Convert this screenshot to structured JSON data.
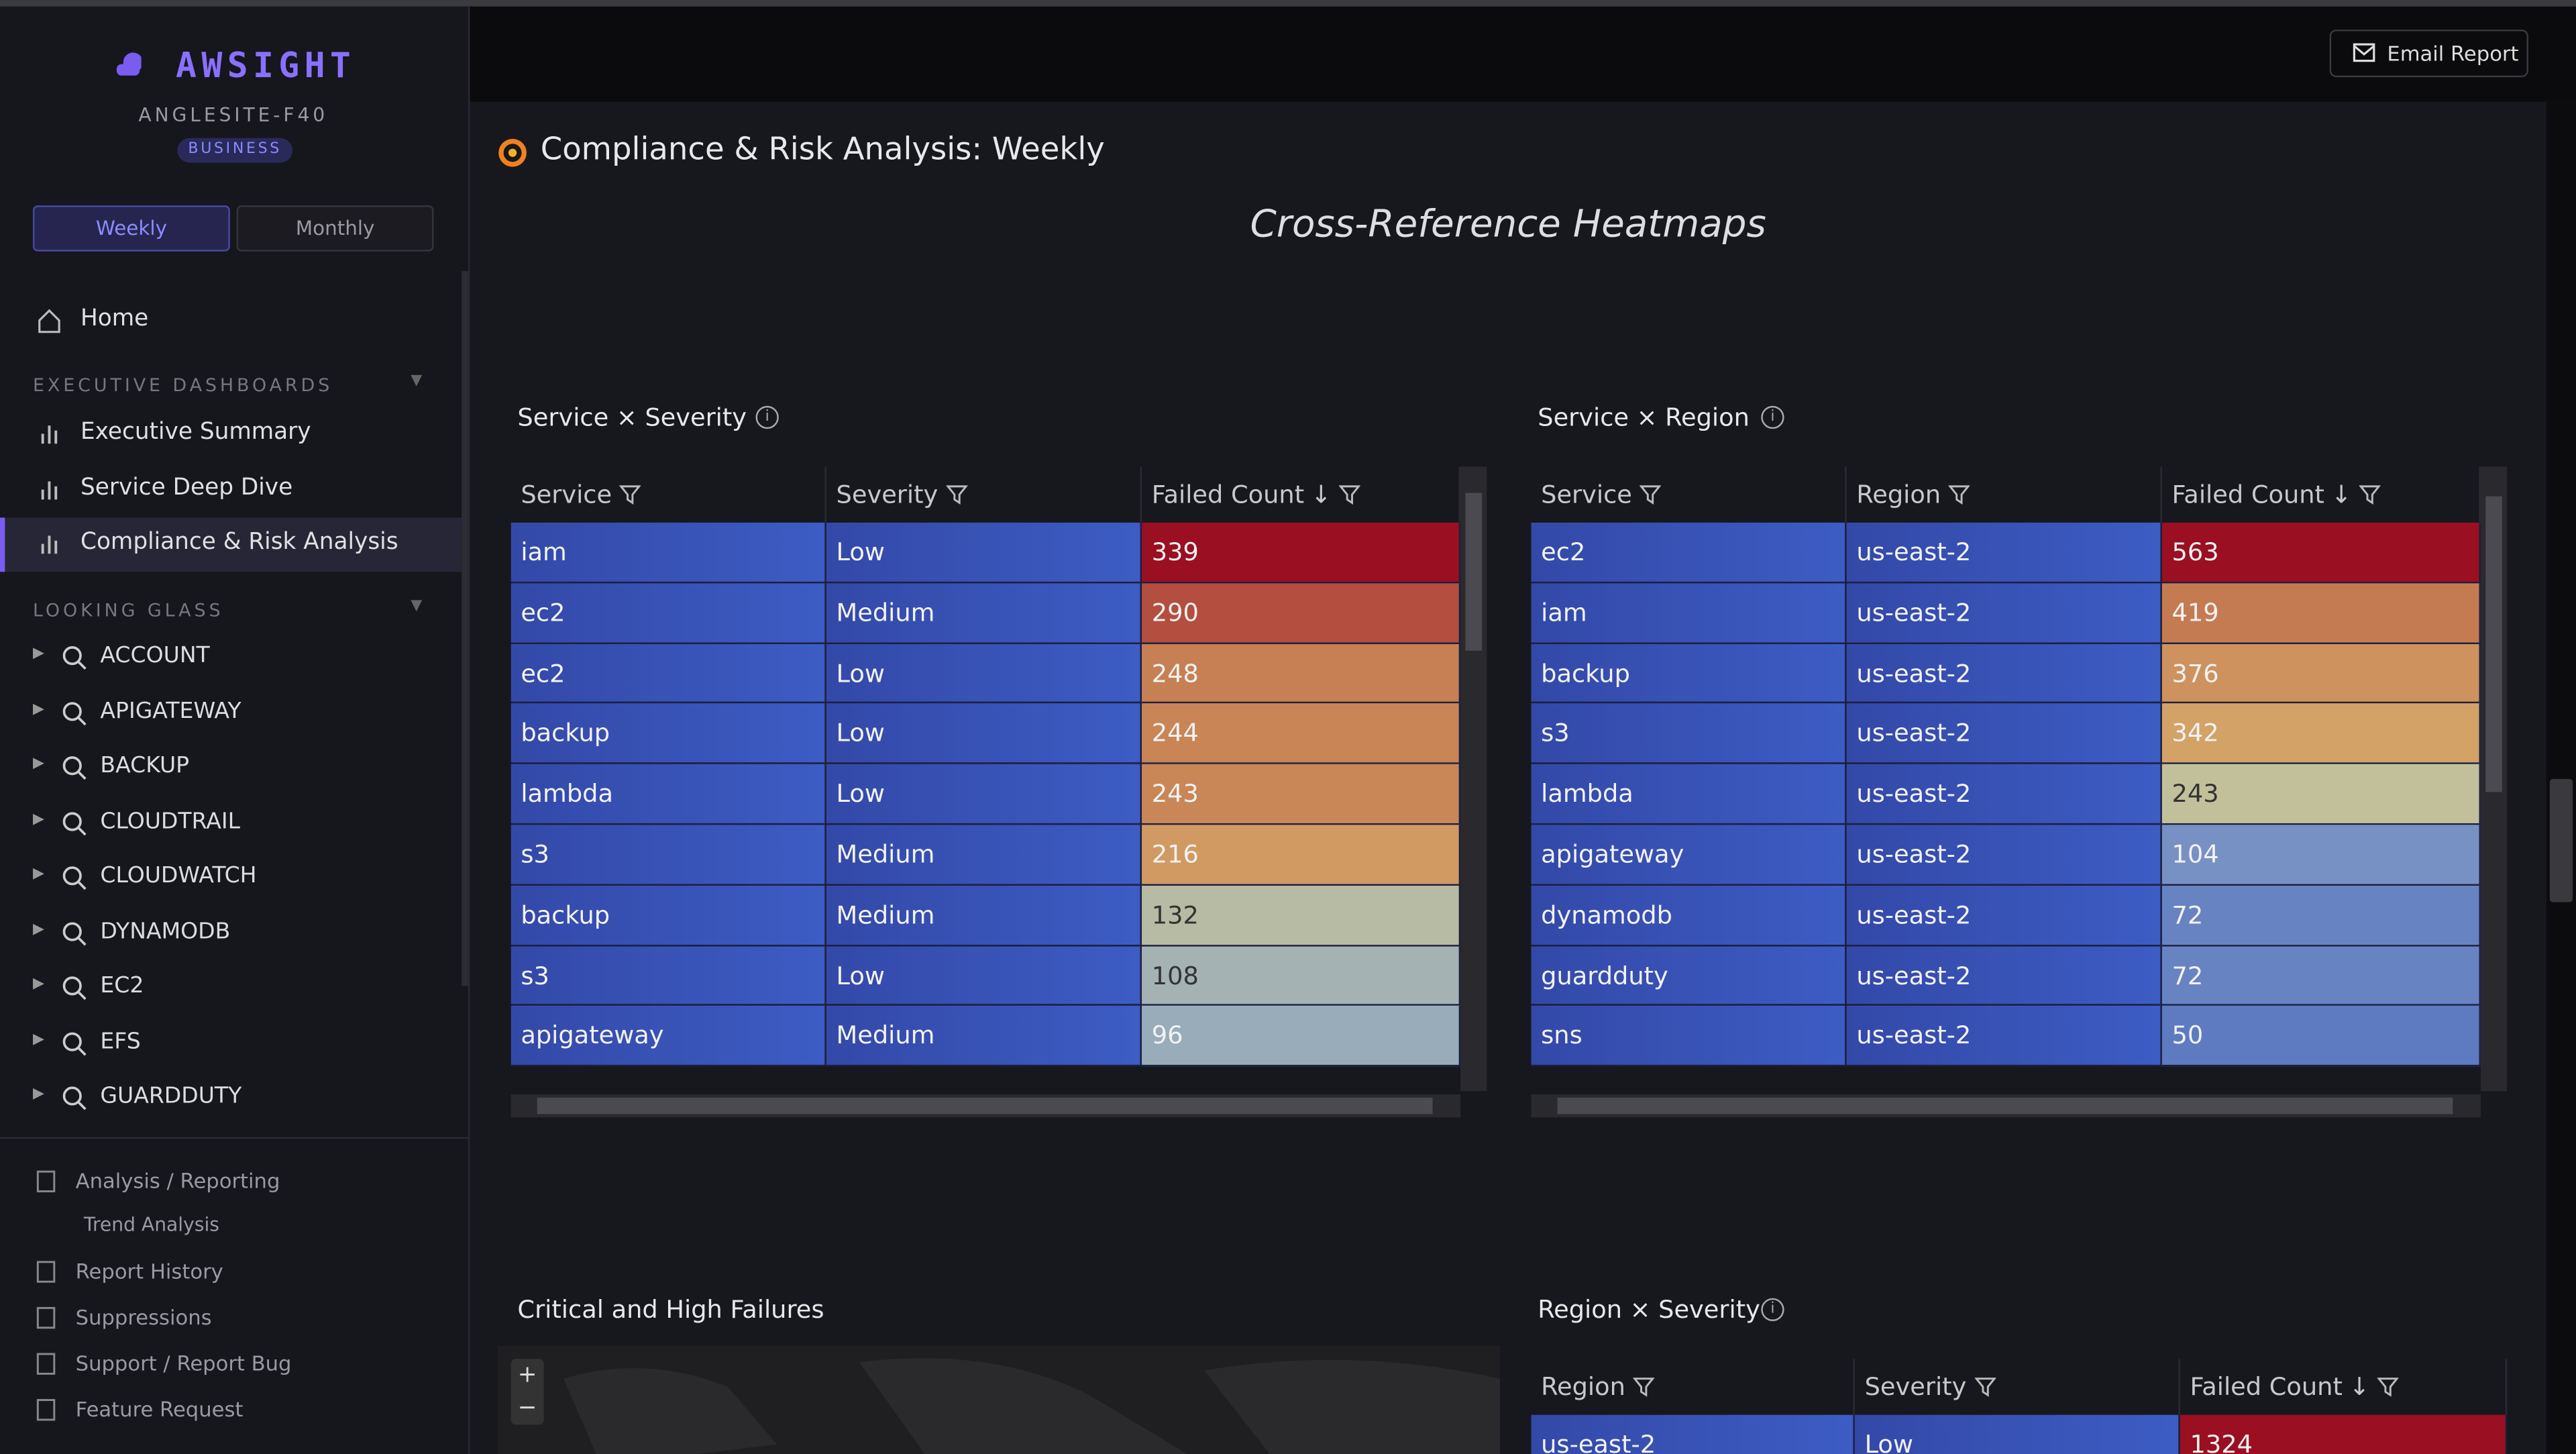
{
  "sidebar": {
    "brand": "AWSIGHT",
    "account": "ANGLESITE-F40",
    "plan": "BUSINESS",
    "toggle": [
      "Weekly",
      "Monthly"
    ],
    "home": "Home",
    "sections": [
      {
        "title": "EXECUTIVE DASHBOARDS",
        "items": [
          "Executive Summary",
          "Service Deep Dive",
          "Compliance & Risk Analysis"
        ]
      },
      {
        "title": "LOOKING GLASS",
        "items": [
          "ACCOUNT",
          "APIGATEWAY",
          "BACKUP",
          "CLOUDTRAIL",
          "CLOUDWATCH",
          "DYNAMODB",
          "EC2",
          "EFS",
          "GUARDDUTY"
        ]
      }
    ],
    "footer": [
      "Analysis / Reporting",
      "Trend Analysis",
      "Report History",
      "Suppressions",
      "Support / Report Bug",
      "Feature Request"
    ]
  },
  "header": {
    "email": "Email Report"
  },
  "page": {
    "title": "Compliance & Risk Analysis: Weekly",
    "subtitle": "Cross-Reference Heatmaps"
  },
  "tables": [
    {
      "title": "Service × Severity",
      "columns": [
        "Service",
        "Severity",
        "Failed Count"
      ],
      "rows": [
        [
          "iam",
          "Low",
          339
        ],
        [
          "ec2",
          "Medium",
          290
        ],
        [
          "ec2",
          "Low",
          248
        ],
        [
          "backup",
          "Low",
          244
        ],
        [
          "lambda",
          "Low",
          243
        ],
        [
          "s3",
          "Medium",
          216
        ],
        [
          "backup",
          "Medium",
          132
        ],
        [
          "s3",
          "Low",
          108
        ],
        [
          "apigateway",
          "Medium",
          96
        ]
      ]
    },
    {
      "title": "Service × Region",
      "columns": [
        "Service",
        "Region",
        "Failed Count"
      ],
      "rows": [
        [
          "ec2",
          "us-east-2",
          563
        ],
        [
          "iam",
          "us-east-2",
          419
        ],
        [
          "backup",
          "us-east-2",
          376
        ],
        [
          "s3",
          "us-east-2",
          342
        ],
        [
          "lambda",
          "us-east-2",
          243
        ],
        [
          "apigateway",
          "us-east-2",
          104
        ],
        [
          "dynamodb",
          "us-east-2",
          72
        ],
        [
          "guardduty",
          "us-east-2",
          72
        ],
        [
          "sns",
          "us-east-2",
          50
        ]
      ]
    },
    {
      "title": "Region × Severity",
      "columns": [
        "Region",
        "Severity",
        "Failed Count"
      ],
      "rows": [
        [
          "us-east-2",
          "Low",
          1324
        ]
      ]
    }
  ],
  "map": {
    "title": "Critical and High Failures"
  }
}
